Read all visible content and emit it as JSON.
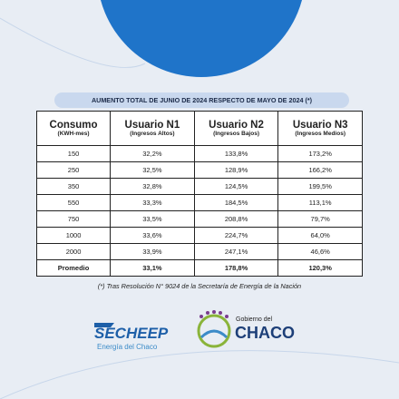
{
  "header": {
    "title": "AUMENTO TOTAL DE JUNIO DE 2024 RESPECTO DE MAYO DE 2024 (*)"
  },
  "table": {
    "columns": [
      {
        "name": "Consumo",
        "sub": "(KWH-mes)"
      },
      {
        "name": "Usuario N1",
        "sub": "(Ingresos Altos)"
      },
      {
        "name": "Usuario N2",
        "sub": "(Ingresos Bajos)"
      },
      {
        "name": "Usuario N3",
        "sub": "(Ingresos Medios)"
      }
    ],
    "rows": [
      [
        "150",
        "32,2%",
        "133,8%",
        "173,2%"
      ],
      [
        "250",
        "32,5%",
        "128,9%",
        "166,2%"
      ],
      [
        "350",
        "32,8%",
        "124,5%",
        "199,5%"
      ],
      [
        "550",
        "33,3%",
        "184,5%",
        "113,1%"
      ],
      [
        "750",
        "33,5%",
        "208,8%",
        "79,7%"
      ],
      [
        "1000",
        "33,6%",
        "224,7%",
        "64,0%"
      ],
      [
        "2000",
        "33,9%",
        "247,1%",
        "46,6%"
      ]
    ],
    "total": [
      "Promedio",
      "33,1%",
      "178,8%",
      "120,3%"
    ]
  },
  "footnote": "(*) Tras Resolución N° 9024 de la Secretaría de Energía de la Nación",
  "logos": {
    "secheep": "SECHEEP",
    "secheep_sub": "Energía del Chaco",
    "gob": "Gobierno del",
    "chaco": "CHACO"
  }
}
